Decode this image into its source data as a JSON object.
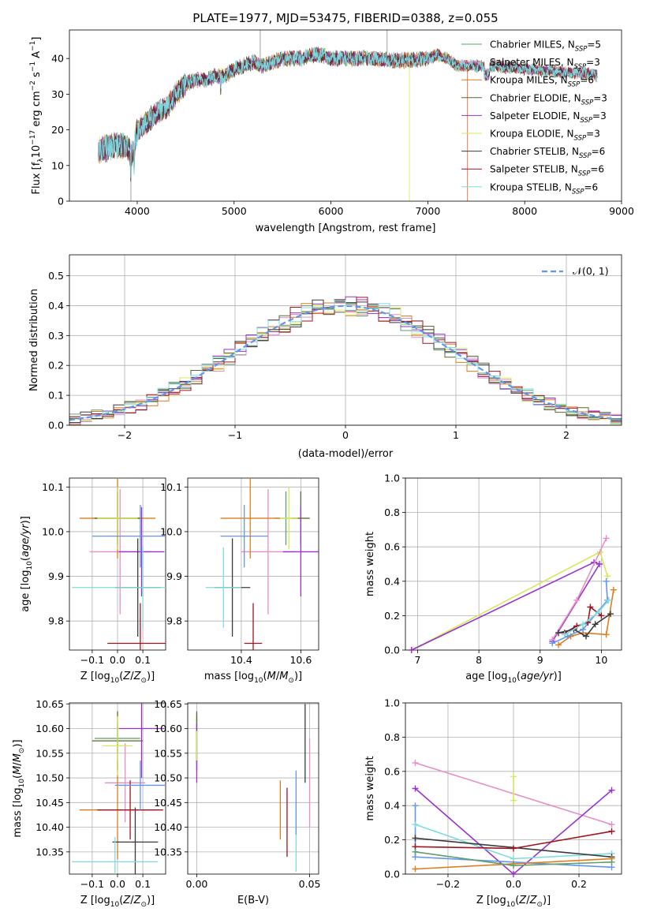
{
  "figure": {
    "title": "PLATE=1977, MJD=53475, FIBERID=0388, z=0.055"
  },
  "colors": {
    "Chabrier MILES": "#5f9e6e",
    "Salpeter MILES": "#e68ec8",
    "Kroupa MILES": "#dc7d1e",
    "Chabrier ELODIE": "#556b2f",
    "Salpeter ELODIE": "#9932cc",
    "Kroupa ELODIE": "#d7e85a",
    "Chabrier STELIB": "#3b3b3b",
    "Salpeter STELIB": "#a0141e",
    "Kroupa STELIB": "#7fdbe0",
    "normal": "#6495ed",
    "grid": "#b0b0b0"
  },
  "legend_spectrum": [
    {
      "model": "Chabrier MILES",
      "n": "5"
    },
    {
      "model": "Salpeter MILES",
      "n": "3"
    },
    {
      "model": "Kroupa MILES",
      "n": "6"
    },
    {
      "model": "Chabrier ELODIE",
      "n": "3"
    },
    {
      "model": "Salpeter ELODIE",
      "n": "3"
    },
    {
      "model": "Kroupa ELODIE",
      "n": "3"
    },
    {
      "model": "Chabrier STELIB",
      "n": "6"
    },
    {
      "model": "Salpeter STELIB",
      "n": "6"
    },
    {
      "model": "Kroupa STELIB",
      "n": "6"
    }
  ],
  "chart_data": [
    {
      "type": "line",
      "panel": "spectrum",
      "xlabel": "wavelength [Angstrom, rest frame]",
      "ylabel": "Flux [f_λ 10^-17 erg cm^-2 s^-1 A^-1]",
      "xlim": [
        3300,
        9000
      ],
      "ylim": [
        0,
        48
      ],
      "xticks": [
        4000,
        5000,
        6000,
        7000,
        8000,
        9000
      ],
      "yticks": [
        0,
        10,
        20,
        30,
        40
      ],
      "grid": false,
      "legend": "right",
      "continuum": {
        "x": [
          3600,
          3700,
          3800,
          3900,
          3950,
          4000,
          4100,
          4200,
          4300,
          4400,
          4500,
          4600,
          4700,
          4800,
          4900,
          5000,
          5100,
          5200,
          5300,
          5400,
          5500,
          5600,
          5700,
          5800,
          5900,
          6000,
          6200,
          6400,
          6600,
          6800,
          7000,
          7100,
          7200,
          7300,
          7400,
          7500,
          7600,
          7700,
          7800,
          7900,
          8000,
          8100,
          8200,
          8300,
          8400,
          8500,
          8600,
          8700,
          8750
        ],
        "y": [
          14,
          15,
          16,
          15,
          13,
          20,
          22,
          25,
          26,
          30,
          33,
          34,
          34,
          35,
          35,
          37,
          38,
          39,
          38,
          39,
          40,
          40,
          40,
          41,
          41,
          40,
          40,
          40,
          39.5,
          39.5,
          40,
          41,
          40,
          38,
          38,
          38,
          37.5,
          38,
          37.5,
          37.5,
          37,
          37,
          36.5,
          36.5,
          36,
          36,
          36,
          35.5,
          35
        ]
      },
      "outliers": [
        {
          "x": 3935,
          "y": -1
        },
        {
          "x": 5270,
          "y": 48
        },
        {
          "x": 6580,
          "y": 48
        },
        {
          "x": 6810,
          "y": -1
        },
        {
          "x": 7410,
          "y": -1
        }
      ]
    },
    {
      "type": "area",
      "panel": "residual_histogram",
      "xlabel": "(data-model)/error",
      "ylabel": "Normed distribution",
      "xlim": [
        -2.5,
        2.5
      ],
      "ylim": [
        0,
        0.57
      ],
      "xticks": [
        -2,
        -1,
        0,
        1,
        2
      ],
      "yticks": [
        0,
        0.1,
        0.2,
        0.3,
        0.4,
        0.5
      ],
      "grid": true,
      "legend": "top-right",
      "reference_curve": "N(0,1)",
      "bins": {
        "start": -2.5,
        "width": 0.1,
        "count": 50
      }
    },
    {
      "type": "scatter",
      "panel": "age_vs_Z",
      "xlabel": "Z [log10(Z/Z⊙)]",
      "ylabel": "age [log10(age/yr)]",
      "xlim": [
        -0.19,
        0.19
      ],
      "ylim": [
        9.735,
        10.12
      ],
      "xticks": [
        -0.1,
        0.0,
        0.1
      ],
      "yticks": [
        9.8,
        9.9,
        10.0,
        10.1
      ],
      "grid": true,
      "points": [
        {
          "model": "Chabrier MILES",
          "x": 0.0,
          "y": 10.03,
          "xerr": 0.1,
          "yerr": 0.07
        },
        {
          "model": "Salpeter MILES",
          "x": 0.01,
          "y": 9.955,
          "xerr": 0.12,
          "yerr": 0.14
        },
        {
          "model": "Kroupa MILES",
          "x": 0.0,
          "y": 10.03,
          "xerr": 0.15,
          "yerr": 0.09
        },
        {
          "model": "Chabrier ELODIE",
          "x": 0.0,
          "y": 10.03,
          "xerr": 0.09,
          "yerr": 0.06
        },
        {
          "model": "Salpeter ELODIE",
          "x": 0.095,
          "y": 9.955,
          "xerr": 0.09,
          "yerr": 0.1
        },
        {
          "model": "Kroupa ELODIE",
          "x": 0.0,
          "y": 10.03,
          "xerr": 0.08,
          "yerr": 0.07
        },
        {
          "model": "Chabrier STELIB",
          "x": 0.08,
          "y": 9.875,
          "xerr": 0.09,
          "yerr": 0.11
        },
        {
          "model": "Salpeter STELIB",
          "x": 0.09,
          "y": 9.75,
          "xerr": 0.13,
          "yerr": 0.09
        },
        {
          "model": "Kroupa STELIB",
          "x": 0.1,
          "y": 9.875,
          "xerr": 0.28,
          "yerr": 0.09
        },
        {
          "model": "normal",
          "x": 0.09,
          "y": 9.99,
          "xerr": 0.19,
          "yerr": 0.07
        }
      ]
    },
    {
      "type": "scatter",
      "panel": "age_vs_mass",
      "xlabel": "mass [log10(M/M⊙)]",
      "ylabel": "",
      "xlim": [
        10.22,
        10.66
      ],
      "ylim": [
        9.735,
        10.12
      ],
      "xticks": [
        10.4,
        10.6
      ],
      "yticks": [
        9.8,
        9.9,
        10.0,
        10.1
      ],
      "grid": true,
      "points": [
        {
          "model": "Chabrier MILES",
          "x": 10.55,
          "y": 10.03,
          "xerr": 0.04,
          "yerr": 0.06
        },
        {
          "model": "Salpeter MILES",
          "x": 10.49,
          "y": 9.955,
          "xerr": 0.09,
          "yerr": 0.14
        },
        {
          "model": "Kroupa MILES",
          "x": 10.43,
          "y": 10.03,
          "xerr": 0.1,
          "yerr": 0.09
        },
        {
          "model": "Chabrier ELODIE",
          "x": 10.6,
          "y": 10.03,
          "xerr": 0.03,
          "yerr": 0.06
        },
        {
          "model": "Salpeter ELODIE",
          "x": 10.6,
          "y": 9.955,
          "xerr": 0.06,
          "yerr": 0.1
        },
        {
          "model": "Kroupa ELODIE",
          "x": 10.56,
          "y": 10.03,
          "xerr": 0.03,
          "yerr": 0.07
        },
        {
          "model": "Chabrier STELIB",
          "x": 10.37,
          "y": 9.875,
          "xerr": 0.06,
          "yerr": 0.11
        },
        {
          "model": "Salpeter STELIB",
          "x": 10.44,
          "y": 9.75,
          "xerr": 0.03,
          "yerr": 0.09
        },
        {
          "model": "Kroupa STELIB",
          "x": 10.34,
          "y": 9.875,
          "xerr": 0.06,
          "yerr": 0.09
        },
        {
          "model": "normal",
          "x": 10.41,
          "y": 9.99,
          "xerr": 0.08,
          "yerr": 0.07
        }
      ]
    },
    {
      "type": "line",
      "panel": "mass_weight_vs_age",
      "xlabel": "age [log10(age/yr)]",
      "ylabel": "mass weight",
      "xlim": [
        6.8,
        10.33
      ],
      "ylim": [
        0,
        1.0
      ],
      "xticks": [
        7,
        8,
        9,
        10
      ],
      "yticks": [
        0.0,
        0.2,
        0.4,
        0.6,
        0.8,
        1.0
      ],
      "grid": true,
      "series": [
        {
          "model": "Kroupa ELODIE",
          "x": [
            6.9,
            9.98,
            10.1
          ],
          "y": [
            0.0,
            0.57,
            0.43
          ]
        },
        {
          "model": "Salpeter ELODIE",
          "x": [
            6.9,
            9.88,
            9.97,
            9.2
          ],
          "y": [
            0.0,
            0.51,
            0.5,
            0.05
          ]
        },
        {
          "model": "Salpeter MILES",
          "x": [
            9.2,
            9.6,
            10.08
          ],
          "y": [
            0.06,
            0.29,
            0.65
          ]
        },
        {
          "model": "Kroupa MILES",
          "x": [
            9.3,
            9.5,
            9.7,
            10.08,
            10.2
          ],
          "y": [
            0.03,
            0.08,
            0.1,
            0.09,
            0.35
          ]
        },
        {
          "model": "normal",
          "x": [
            9.2,
            9.45,
            9.7,
            10.1,
            10.08
          ],
          "y": [
            0.04,
            0.08,
            0.12,
            0.29,
            0.4
          ]
        },
        {
          "model": "Salpeter STELIB",
          "x": [
            9.4,
            9.6,
            9.78,
            9.82,
            10.0
          ],
          "y": [
            0.1,
            0.14,
            0.16,
            0.25,
            0.2
          ]
        },
        {
          "model": "Chabrier STELIB",
          "x": [
            9.3,
            9.55,
            9.75,
            9.9,
            10.15
          ],
          "y": [
            0.1,
            0.12,
            0.08,
            0.15,
            0.21
          ]
        },
        {
          "model": "Kroupa STELIB",
          "x": [
            9.4,
            9.7,
            9.95,
            10.12
          ],
          "y": [
            0.09,
            0.15,
            0.22,
            0.29
          ]
        }
      ]
    },
    {
      "type": "scatter",
      "panel": "mass_vs_Z",
      "xlabel": "Z [log10(Z/Z⊙)]",
      "ylabel": "mass [log10(M/M⊙)]",
      "xlim": [
        -0.19,
        0.19
      ],
      "ylim": [
        10.305,
        10.652
      ],
      "xticks": [
        -0.1,
        0.0,
        0.1
      ],
      "yticks": [
        10.35,
        10.4,
        10.45,
        10.5,
        10.55,
        10.6,
        10.65
      ],
      "grid": true,
      "points": [
        {
          "model": "Chabrier MILES",
          "x": 0.0,
          "y": 10.58,
          "xerr": 0.09,
          "yerr": 0.03
        },
        {
          "model": "Salpeter MILES",
          "x": 0.03,
          "y": 10.49,
          "xerr": 0.08,
          "yerr": 0.08
        },
        {
          "model": "Kroupa MILES",
          "x": 0.0,
          "y": 10.435,
          "xerr": 0.15,
          "yerr": 0.1
        },
        {
          "model": "Chabrier ELODIE",
          "x": 0.0,
          "y": 10.575,
          "xerr": 0.1,
          "yerr": 0.06
        },
        {
          "model": "Salpeter ELODIE",
          "x": 0.095,
          "y": 10.6,
          "xerr": 0.09,
          "yerr": 0.1
        },
        {
          "model": "Kroupa ELODIE",
          "x": 0.0,
          "y": 10.565,
          "xerr": 0.06,
          "yerr": 0.06
        },
        {
          "model": "Chabrier STELIB",
          "x": 0.07,
          "y": 10.37,
          "xerr": 0.09,
          "yerr": 0.07
        },
        {
          "model": "Salpeter STELIB",
          "x": 0.05,
          "y": 10.435,
          "xerr": 0.13,
          "yerr": 0.06
        },
        {
          "model": "Kroupa STELIB",
          "x": -0.01,
          "y": 10.33,
          "xerr": 0.17,
          "yerr": 0.05
        },
        {
          "model": "normal",
          "x": 0.09,
          "y": 10.485,
          "xerr": 0.1,
          "yerr": 0.05
        }
      ]
    },
    {
      "type": "scatter",
      "panel": "mass_vs_EBV",
      "xlabel": "E(B-V)",
      "ylabel": "",
      "xlim": [
        -0.004,
        0.054
      ],
      "ylim": [
        10.305,
        10.652
      ],
      "xticks": [
        0.0,
        0.05
      ],
      "yticks": [
        10.35,
        10.4,
        10.45,
        10.5,
        10.55,
        10.6,
        10.65
      ],
      "grid": true,
      "points": [
        {
          "model": "Chabrier MILES",
          "x": 0.0,
          "y": 10.58,
          "xerr": 0.0,
          "yerr": 0.05
        },
        {
          "model": "Salpeter MILES",
          "x": 0.05,
          "y": 10.49,
          "xerr": 0.0,
          "yerr": 0.09
        },
        {
          "model": "Kroupa MILES",
          "x": 0.037,
          "y": 10.435,
          "xerr": 0.0,
          "yerr": 0.06
        },
        {
          "model": "Chabrier ELODIE",
          "x": 0.0,
          "y": 10.575,
          "xerr": 0.0,
          "yerr": 0.06
        },
        {
          "model": "Salpeter ELODIE",
          "x": 0.0,
          "y": 10.55,
          "xerr": 0.0,
          "yerr": 0.06
        },
        {
          "model": "Kroupa ELODIE",
          "x": 0.0,
          "y": 10.565,
          "xerr": 0.0,
          "yerr": 0.03
        },
        {
          "model": "Chabrier STELIB",
          "x": 0.048,
          "y": 10.57,
          "xerr": 0.0,
          "yerr": 0.08
        },
        {
          "model": "Salpeter STELIB",
          "x": 0.04,
          "y": 10.41,
          "xerr": 0.0,
          "yerr": 0.07
        },
        {
          "model": "Kroupa STELIB",
          "x": 0.044,
          "y": 10.38,
          "xerr": 0.0,
          "yerr": 0.07
        },
        {
          "model": "normal",
          "x": 0.044,
          "y": 10.45,
          "xerr": 0.0,
          "yerr": 0.065
        }
      ]
    },
    {
      "type": "line",
      "panel": "mass_weight_vs_Z",
      "xlabel": "Z [log10(Z/Z⊙)]",
      "ylabel": "mass weight",
      "xlim": [
        -0.33,
        0.33
      ],
      "ylim": [
        0,
        1.0
      ],
      "xticks": [
        -0.2,
        0.0,
        0.2
      ],
      "yticks": [
        0.0,
        0.2,
        0.4,
        0.6,
        0.8,
        1.0
      ],
      "grid": true,
      "series": [
        {
          "model": "Salpeter MILES",
          "x": [
            -0.3,
            0.3
          ],
          "y": [
            0.65,
            0.29
          ]
        },
        {
          "model": "Salpeter ELODIE",
          "x": [
            -0.3,
            0.0,
            0.3
          ],
          "y": [
            0.5,
            0.0,
            0.49
          ]
        },
        {
          "model": "Kroupa ELODIE",
          "x": [
            0.0,
            0.0
          ],
          "y": [
            0.43,
            0.57
          ]
        },
        {
          "model": "normal",
          "x": [
            -0.3,
            -0.3,
            0.3
          ],
          "y": [
            0.4,
            0.1,
            0.04
          ]
        },
        {
          "model": "Kroupa STELIB",
          "x": [
            -0.3,
            0.0,
            0.3
          ],
          "y": [
            0.29,
            0.09,
            0.12
          ]
        },
        {
          "model": "Chabrier STELIB",
          "x": [
            -0.3,
            0.3
          ],
          "y": [
            0.21,
            0.1
          ]
        },
        {
          "model": "Salpeter STELIB",
          "x": [
            -0.3,
            0.0,
            0.3
          ],
          "y": [
            0.16,
            0.15,
            0.25
          ]
        },
        {
          "model": "Kroupa MILES",
          "x": [
            -0.3,
            0.0,
            0.3
          ],
          "y": [
            0.03,
            0.06,
            0.09
          ]
        },
        {
          "model": "Chabrier MILES",
          "x": [
            -0.3,
            0.0,
            0.3
          ],
          "y": [
            0.13,
            0.05,
            0.07
          ]
        }
      ]
    }
  ]
}
